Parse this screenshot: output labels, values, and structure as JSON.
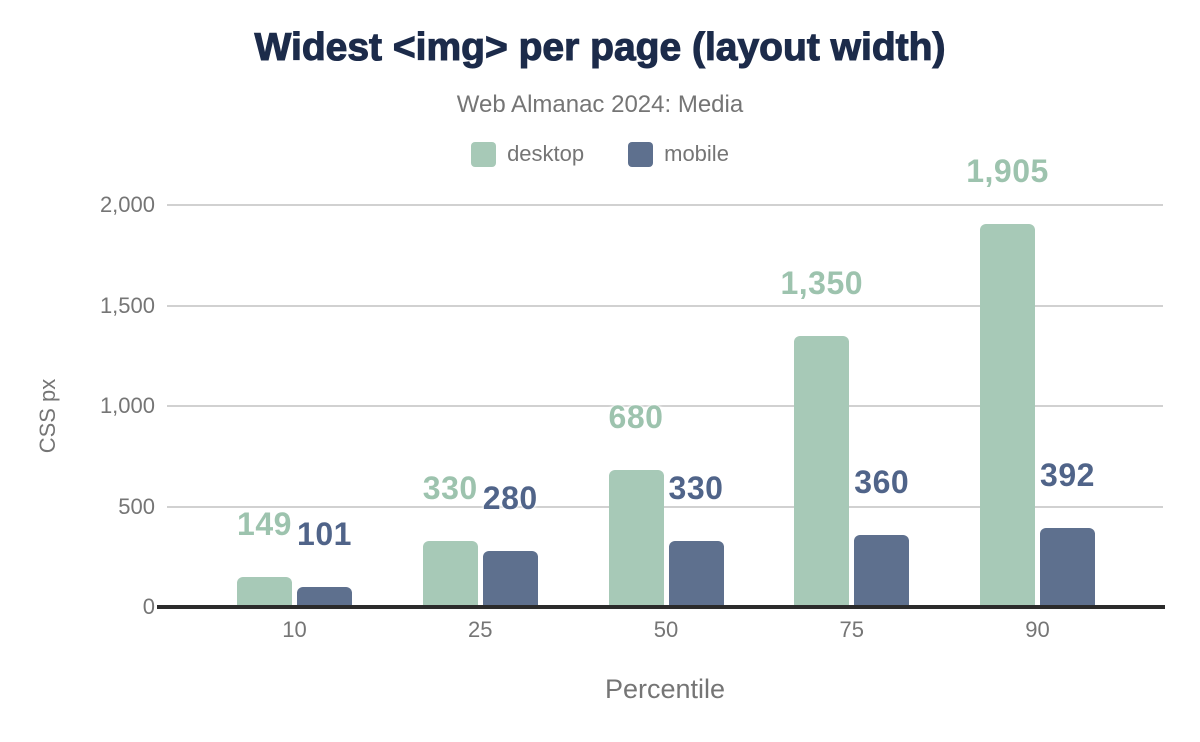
{
  "colors": {
    "background": "#ffffff",
    "title": "#1c2b4a",
    "muted_text": "#757575",
    "gridline": "#d1d1d1",
    "axis_line": "#2b2b2b",
    "desktop": "#a7c9b7",
    "desktop_label": "#9dc3ae",
    "mobile": "#5e708e",
    "mobile_label": "#506489"
  },
  "chart_data": {
    "type": "bar",
    "title": "Widest <img> per page (layout width)",
    "subtitle": "Web Almanac 2024: Media",
    "xlabel": "Percentile",
    "ylabel": "CSS px",
    "categories": [
      "10",
      "25",
      "50",
      "75",
      "90"
    ],
    "series": [
      {
        "name": "desktop",
        "color": "#a7c9b7",
        "label_color": "#9dc3ae",
        "values": [
          149,
          330,
          680,
          1350,
          1905
        ],
        "labels": [
          "149",
          "330",
          "680",
          "1,350",
          "1,905"
        ]
      },
      {
        "name": "mobile",
        "color": "#5e708e",
        "label_color": "#506489",
        "values": [
          101,
          280,
          330,
          360,
          392
        ],
        "labels": [
          "101",
          "280",
          "330",
          "360",
          "392"
        ]
      }
    ],
    "ylim": [
      0,
      2000
    ],
    "y_ticks": [
      {
        "value": 0,
        "label": "0"
      },
      {
        "value": 500,
        "label": "500"
      },
      {
        "value": 1000,
        "label": "1,000"
      },
      {
        "value": 1500,
        "label": "1,500"
      },
      {
        "value": 2000,
        "label": "2,000"
      }
    ],
    "grid": true,
    "legend_position": "top"
  }
}
